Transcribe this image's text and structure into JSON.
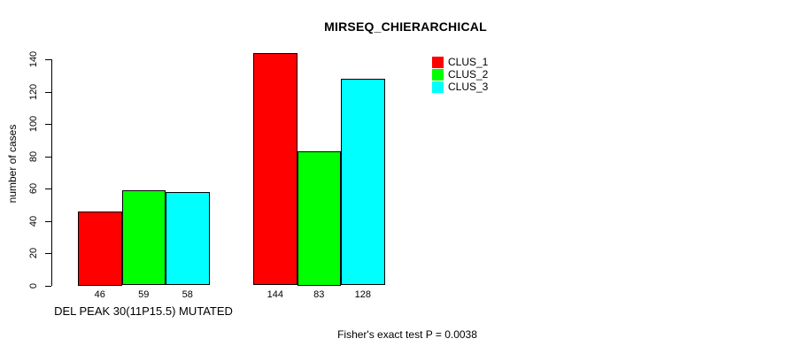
{
  "chart_data": {
    "type": "bar",
    "title": "MIRSEQ_CHIERARCHICAL",
    "xlabel": "",
    "ylabel": "number of cases",
    "ylim": [
      0,
      140
    ],
    "yticks": [
      0,
      20,
      40,
      60,
      80,
      100,
      120,
      140
    ],
    "categories": [
      "DEL PEAK 30(11P15.5) MUTATED",
      ""
    ],
    "group_labels_shown": [
      "DEL PEAK 30(11P15.5) MUTATED"
    ],
    "series": [
      {
        "name": "CLUS_1",
        "color": "#ff0000",
        "values": [
          46,
          144
        ]
      },
      {
        "name": "CLUS_2",
        "color": "#00ff00",
        "values": [
          59,
          83
        ]
      },
      {
        "name": "CLUS_3",
        "color": "#00ffff",
        "values": [
          58,
          128
        ]
      }
    ],
    "bar_value_labels": [
      [
        46,
        59,
        58
      ],
      [
        144,
        83,
        128
      ]
    ],
    "legend": {
      "position": "top-right",
      "entries": [
        {
          "label": "CLUS_1",
          "color": "#ff0000"
        },
        {
          "label": "CLUS_2",
          "color": "#00ff00"
        },
        {
          "label": "CLUS_3",
          "color": "#00ffff"
        }
      ]
    },
    "grid": false,
    "annotation": "Fisher's exact test P = 0.0038",
    "background_color": "#ffffff",
    "axis_color": "#000000"
  }
}
